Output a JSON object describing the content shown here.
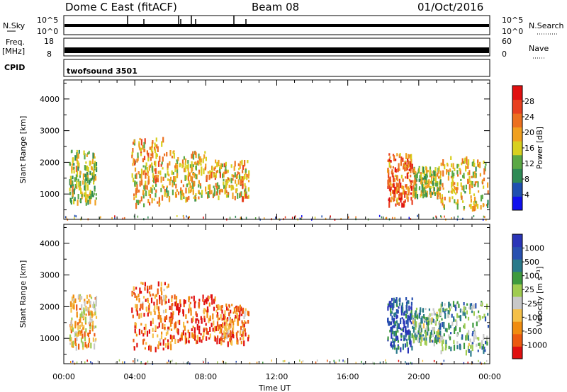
{
  "header": {
    "station": "Dome C East (fitACF)",
    "beam": "Beam 08",
    "date": "01/Oct/2016"
  },
  "strips": {
    "nsky_label": "N.Sky",
    "nsky_ticks": [
      "10^5",
      "10^0"
    ],
    "nsearch_label": "N.Search",
    "nsearch_ticks": [
      "10^5",
      "10^0"
    ],
    "freq_label": "Freq.",
    "freq_unit": "[MHz]",
    "freq_ticks": [
      "18",
      "8"
    ],
    "nave_label": "Nave",
    "nave_ticks": [
      "60",
      "0"
    ],
    "cpid_label": "CPID",
    "cpid_value": "twofsound 3501"
  },
  "colors": {
    "power": [
      "#1010ee",
      "#1f4fb0",
      "#2e8a55",
      "#5aa845",
      "#d8d020",
      "#f0a020",
      "#ec7020",
      "#e84020",
      "#e01010"
    ],
    "velocity": [
      "#e01010",
      "#ec5a10",
      "#f08c10",
      "#f5c048",
      "#c8c8c8",
      "#a0cc50",
      "#3e9a3e",
      "#2a7a8a",
      "#2850b0",
      "#2a35b8"
    ]
  },
  "chart_data": [
    {
      "type": "heatmap",
      "name": "power",
      "ylabel": "Slant Range [km]",
      "ylim": [
        200,
        4600
      ],
      "yticks": [
        "4000",
        "3000",
        "2000",
        "1000"
      ],
      "xlabel": "Time UT",
      "xlim": [
        "00:00",
        "24:00"
      ],
      "colorbar_label": "Power [dB]",
      "colorbar_ticks": [
        "28",
        "24",
        "20",
        "16",
        "12",
        "8",
        "4"
      ],
      "colorbar_range": [
        0,
        32
      ],
      "regions": [
        {
          "t0": 0.3,
          "t1": 1.8,
          "r0": 800,
          "r1": 2400,
          "level": 0.45
        },
        {
          "t0": 3.8,
          "t1": 5.6,
          "r0": 700,
          "r1": 2800,
          "level": 0.6
        },
        {
          "t0": 5.6,
          "t1": 8.0,
          "r0": 900,
          "r1": 2400,
          "level": 0.55
        },
        {
          "t0": 8.0,
          "t1": 10.4,
          "r0": 900,
          "r1": 2100,
          "level": 0.6
        },
        {
          "t0": 18.2,
          "t1": 19.6,
          "r0": 700,
          "r1": 2300,
          "level": 0.75
        },
        {
          "t0": 19.6,
          "t1": 21.2,
          "r0": 1000,
          "r1": 1900,
          "level": 0.5
        },
        {
          "t0": 21.2,
          "t1": 23.9,
          "r0": 600,
          "r1": 2200,
          "level": 0.55
        }
      ]
    },
    {
      "type": "heatmap",
      "name": "velocity",
      "ylabel": "Slant Range [km]",
      "ylim": [
        200,
        4600
      ],
      "yticks": [
        "4000",
        "3000",
        "2000",
        "1000"
      ],
      "xlabel": "Time UT",
      "xlim": [
        "00:00",
        "24:00"
      ],
      "xticks": [
        "00:00",
        "04:00",
        "08:00",
        "12:00",
        "16:00",
        "20:00",
        "00:00"
      ],
      "colorbar_label": "Velocity [m s⁻¹]",
      "colorbar_ticks": [
        "1000",
        "500",
        "100",
        "25",
        "-25",
        "-100",
        "-500",
        "-1000"
      ],
      "regions": [
        {
          "t0": 0.3,
          "t1": 1.8,
          "r0": 800,
          "r1": 2400,
          "level": 0.35
        },
        {
          "t0": 3.8,
          "t1": 6.0,
          "r0": 700,
          "r1": 2800,
          "level": 0.2
        },
        {
          "t0": 6.0,
          "t1": 8.5,
          "r0": 900,
          "r1": 2400,
          "level": 0.15
        },
        {
          "t0": 8.5,
          "t1": 10.4,
          "r0": 900,
          "r1": 2100,
          "level": 0.2
        },
        {
          "t0": 18.2,
          "t1": 19.6,
          "r0": 700,
          "r1": 2300,
          "level": 0.85
        },
        {
          "t0": 19.6,
          "t1": 21.2,
          "r0": 900,
          "r1": 2000,
          "level": 0.6
        },
        {
          "t0": 21.2,
          "t1": 23.9,
          "r0": 600,
          "r1": 2200,
          "level": 0.62
        }
      ]
    }
  ]
}
